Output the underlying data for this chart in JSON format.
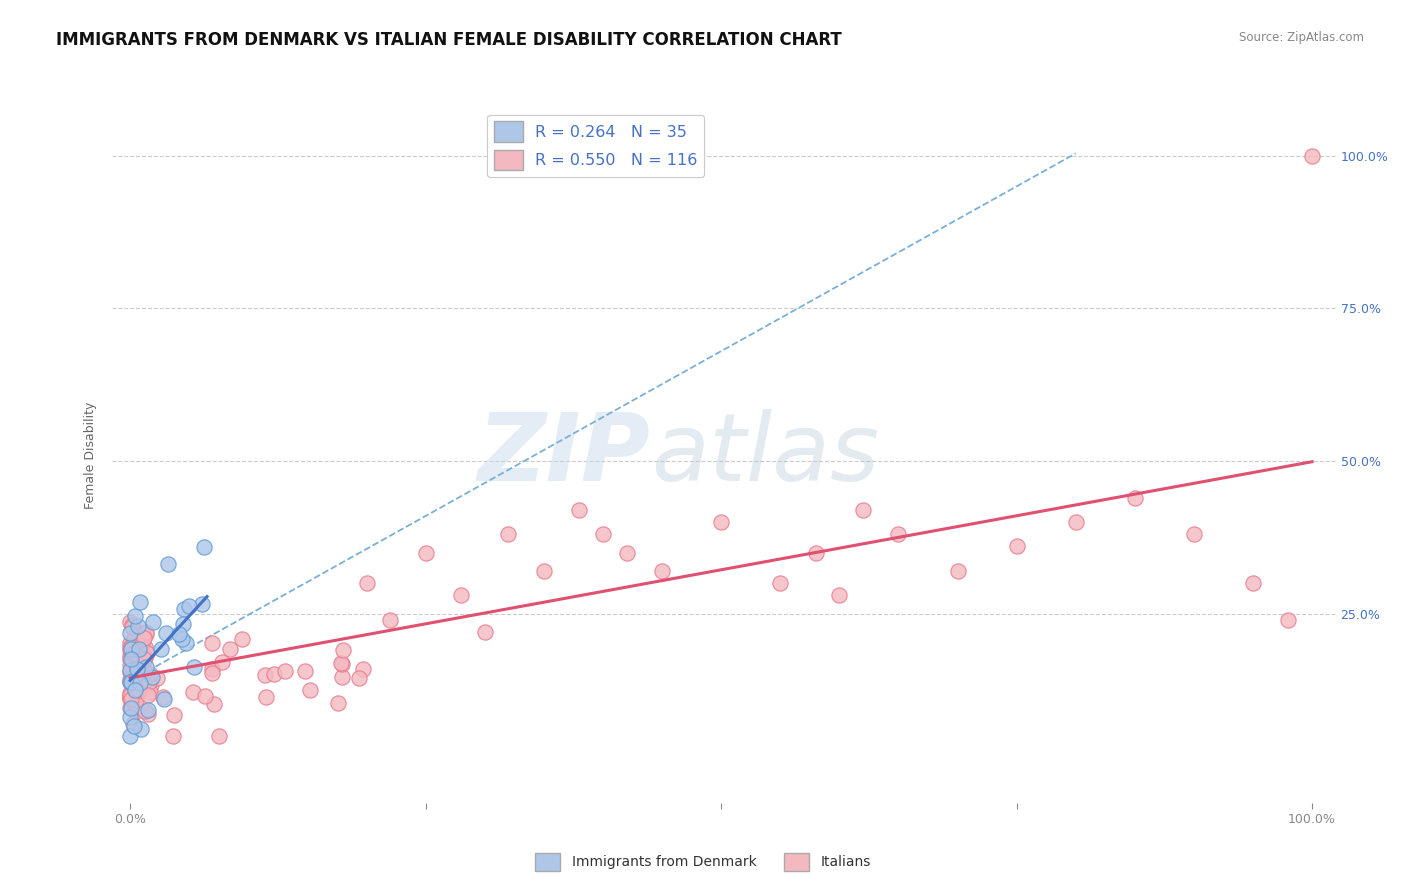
{
  "title": "IMMIGRANTS FROM DENMARK VS ITALIAN FEMALE DISABILITY CORRELATION CHART",
  "source": "Source: ZipAtlas.com",
  "ylabel": "Female Disability",
  "denmark_color": "#aec6e8",
  "italy_color": "#f4b8c1",
  "denmark_edge": "#5b9bd5",
  "italy_edge": "#e87b8c",
  "trendline_denmark_color": "#4472c4",
  "trendline_italy_color": "#e05070",
  "trendline_dashed_color": "#7ab0d8",
  "grid_color": "#cccccc",
  "right_tick_color": "#4472c4",
  "legend_label1": "Immigrants from Denmark",
  "legend_label2": "Italians",
  "watermark_color": "#d0dde8",
  "title_fontsize": 12,
  "axis_fontsize": 9,
  "tick_fontsize": 9
}
